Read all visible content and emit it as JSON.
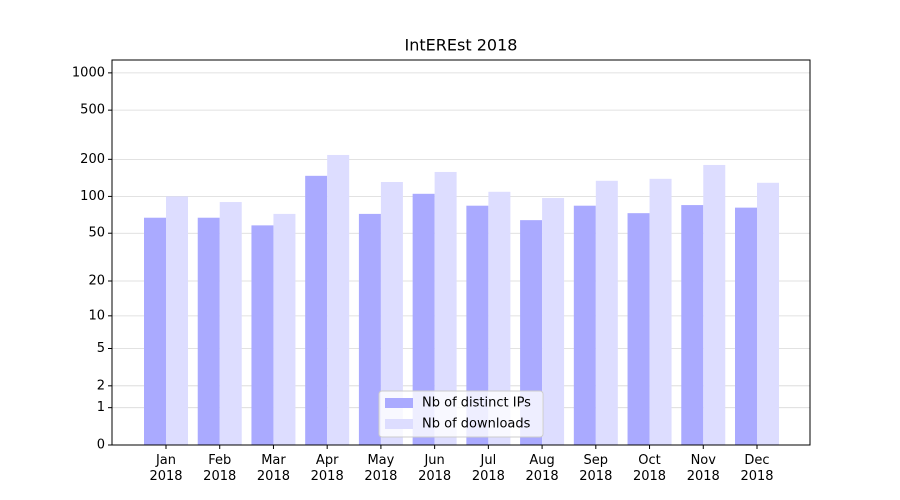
{
  "chart_data": {
    "type": "bar",
    "title": "IntEREst 2018",
    "categories": [
      "Jan\n2018",
      "Feb\n2018",
      "Mar\n2018",
      "Apr\n2018",
      "May\n2018",
      "Jun\n2018",
      "Jul\n2018",
      "Aug\n2018",
      "Sep\n2018",
      "Oct\n2018",
      "Nov\n2018",
      "Dec\n2018"
    ],
    "series": [
      {
        "name": "Nb of distinct IPs",
        "color": "#aaaaff",
        "values": [
          67,
          67,
          58,
          147,
          72,
          105,
          84,
          64,
          84,
          73,
          85,
          81
        ]
      },
      {
        "name": "Nb of downloads",
        "color": "#ddddff",
        "values": [
          100,
          90,
          72,
          217,
          131,
          158,
          109,
          97,
          134,
          139,
          180,
          129
        ]
      }
    ],
    "yscale": "log1p",
    "ylim": [
      0,
      1270
    ],
    "yticks": [
      0,
      1,
      2,
      5,
      10,
      20,
      50,
      100,
      200,
      500,
      1000
    ],
    "grid": true,
    "legend": "lower center"
  }
}
